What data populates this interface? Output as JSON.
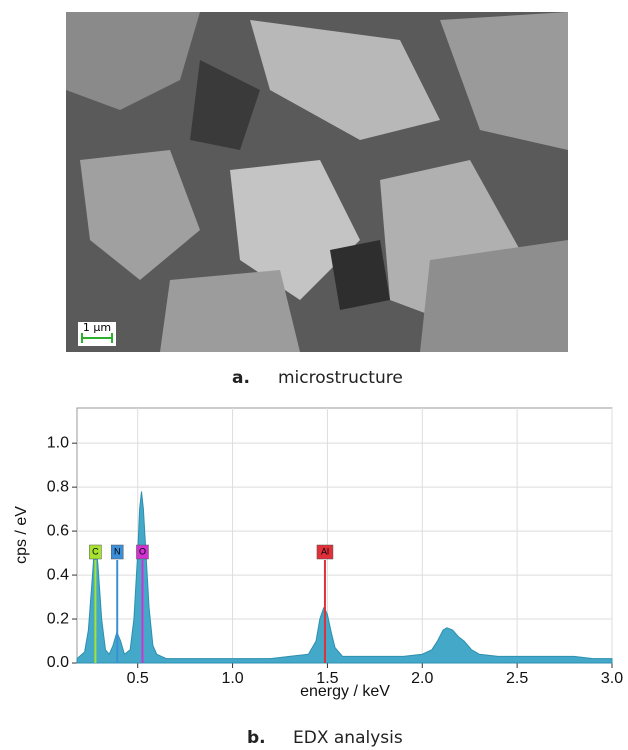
{
  "image_panel": {
    "scale_bar": "1 μm",
    "label": "a.",
    "caption": "microstructure"
  },
  "chart_data": {
    "type": "area",
    "panel_label": "b.",
    "caption": "EDX analysis",
    "x_label": "energy / keV",
    "y_label": "cps / eV",
    "color": "#44a8c8",
    "grid": true,
    "xlim": [
      0.18,
      3.0
    ],
    "ylim": [
      0,
      1.16
    ],
    "xticks": [
      0.5,
      {
        "value": 1,
        "label": "1.0"
      },
      1.5,
      {
        "value": 2,
        "label": "2.0"
      },
      2.5,
      {
        "value": 3,
        "label": "3.0"
      }
    ],
    "yticks": [
      {
        "value": 0,
        "label": "0.0"
      },
      0.2,
      0.4,
      0.6,
      0.8,
      {
        "value": 1,
        "label": "1.0"
      }
    ],
    "x": [
      0.18,
      0.22,
      0.24,
      0.26,
      0.27,
      0.28,
      0.29,
      0.31,
      0.33,
      0.35,
      0.37,
      0.39,
      0.41,
      0.43,
      0.46,
      0.48,
      0.5,
      0.51,
      0.52,
      0.53,
      0.54,
      0.56,
      0.58,
      0.6,
      0.65,
      0.7,
      0.8,
      0.9,
      1.0,
      1.1,
      1.2,
      1.3,
      1.4,
      1.44,
      1.46,
      1.48,
      1.49,
      1.5,
      1.52,
      1.54,
      1.58,
      1.7,
      1.8,
      1.9,
      2.0,
      2.05,
      2.08,
      2.11,
      2.13,
      2.16,
      2.19,
      2.22,
      2.26,
      2.3,
      2.4,
      2.5,
      2.6,
      2.7,
      2.8,
      2.9,
      3.0
    ],
    "values": [
      0.02,
      0.05,
      0.15,
      0.38,
      0.5,
      0.53,
      0.45,
      0.2,
      0.06,
      0.04,
      0.08,
      0.14,
      0.1,
      0.04,
      0.06,
      0.2,
      0.5,
      0.7,
      0.78,
      0.7,
      0.55,
      0.25,
      0.08,
      0.04,
      0.02,
      0.02,
      0.02,
      0.02,
      0.02,
      0.02,
      0.02,
      0.03,
      0.04,
      0.1,
      0.2,
      0.25,
      0.24,
      0.22,
      0.14,
      0.07,
      0.03,
      0.03,
      0.03,
      0.03,
      0.04,
      0.06,
      0.1,
      0.15,
      0.16,
      0.15,
      0.12,
      0.1,
      0.06,
      0.04,
      0.03,
      0.03,
      0.03,
      0.03,
      0.03,
      0.02,
      0.02
    ],
    "markers": [
      {
        "label": "C",
        "x": 0.277,
        "color": "#a6e22e"
      },
      {
        "label": "N",
        "x": 0.392,
        "color": "#3b8fd9"
      },
      {
        "label": "O",
        "x": 0.525,
        "color": "#d033d0"
      },
      {
        "label": "Al",
        "x": 1.487,
        "color": "#e0303a"
      }
    ]
  }
}
